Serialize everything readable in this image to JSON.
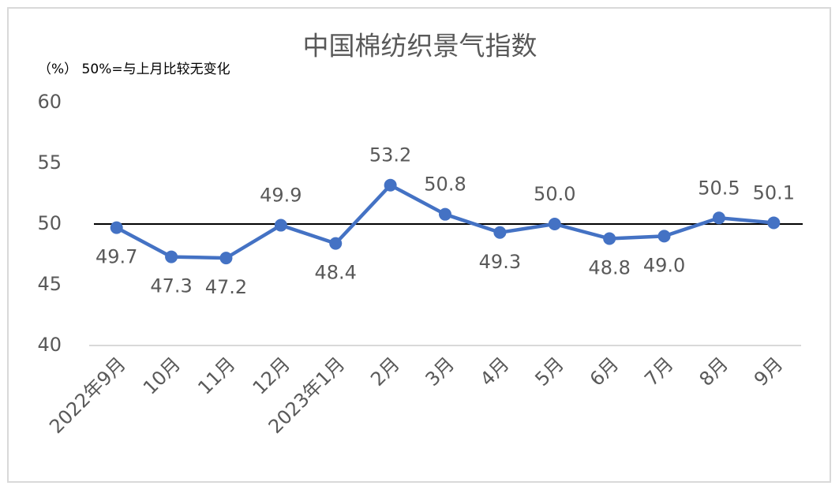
{
  "chart_data": {
    "type": "line",
    "title": "中国棉纺织景气指数",
    "subtitle": "（%） 50%=与上月比较无变化",
    "categories": [
      "2022年9月",
      "10月",
      "11月",
      "12月",
      "2023年1月",
      "2月",
      "3月",
      "4月",
      "5月",
      "6月",
      "7月",
      "8月",
      "9月"
    ],
    "series": [
      {
        "name": "中国棉纺织景气指数",
        "color": "#4472c4",
        "values": [
          49.7,
          47.3,
          47.2,
          49.9,
          48.4,
          53.2,
          50.8,
          49.3,
          50,
          48.8,
          49,
          50.5,
          50.1
        ],
        "value_labels": [
          "49.7",
          "47.3",
          "47.2",
          "49.9",
          "48.4",
          "53.2",
          "50.8",
          "49.3",
          "50.0",
          "48.8",
          "49.0",
          "50.5",
          "50.1"
        ]
      }
    ],
    "ylim": [
      40,
      60
    ],
    "yticks": [
      40,
      45,
      50,
      55,
      60
    ],
    "grid": false,
    "reference_line": 50
  }
}
